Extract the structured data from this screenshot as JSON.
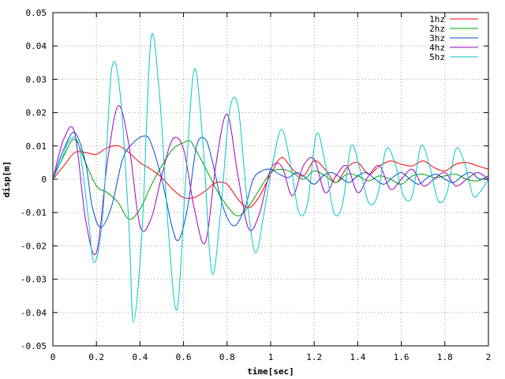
{
  "chart_data": {
    "type": "line",
    "title": "",
    "xlabel": "time[sec]",
    "ylabel": "disp[m]",
    "xlim": [
      0,
      2
    ],
    "ylim": [
      -0.05,
      0.05
    ],
    "xticks": [
      0,
      0.2,
      0.4,
      0.6,
      0.8,
      1,
      1.2,
      1.4,
      1.6,
      1.8,
      2
    ],
    "xtick_labels": [
      "0",
      "0.2",
      "0.4",
      "0.6",
      "0.8",
      "1",
      "1.2",
      "1.4",
      "1.6",
      "1.8",
      "2"
    ],
    "yticks": [
      -0.05,
      -0.04,
      -0.03,
      -0.02,
      -0.01,
      0,
      0.01,
      0.02,
      0.03,
      0.04,
      0.05
    ],
    "ytick_labels": [
      "-0.05",
      "-0.04",
      "-0.03",
      "-0.02",
      "-0.01",
      "0",
      "0.01",
      "0.02",
      "0.03",
      "0.04",
      "0.05"
    ],
    "grid": true,
    "legend_position": "top-right",
    "series": [
      {
        "name": "1hz",
        "color": "#ff0000",
        "x": [
          0,
          0.05,
          0.1,
          0.15,
          0.2,
          0.25,
          0.3,
          0.35,
          0.4,
          0.45,
          0.5,
          0.55,
          0.6,
          0.65,
          0.7,
          0.75,
          0.8,
          0.85,
          0.9,
          0.95,
          1.0,
          1.05,
          1.1,
          1.15,
          1.2,
          1.25,
          1.3,
          1.35,
          1.4,
          1.45,
          1.5,
          1.55,
          1.6,
          1.65,
          1.7,
          1.75,
          1.8,
          1.85,
          1.9,
          1.95,
          2.0
        ],
        "y": [
          0,
          0.004,
          0.008,
          0.008,
          0.0075,
          0.0095,
          0.01,
          0.008,
          0.005,
          0.003,
          0.0005,
          -0.003,
          -0.0055,
          -0.0055,
          -0.0035,
          -0.001,
          -0.0015,
          -0.006,
          -0.0085,
          -0.005,
          0.0015,
          0.0065,
          0.003,
          0.001,
          0.0055,
          0.003,
          -0.001,
          0.0035,
          0.005,
          0.0015,
          0.004,
          0.0055,
          0.0045,
          0.004,
          0.0055,
          0.0035,
          0.0025,
          0.0045,
          0.005,
          0.004,
          0.003
        ]
      },
      {
        "name": "2hz",
        "color": "#00a000",
        "x": [
          0,
          0.05,
          0.1,
          0.15,
          0.2,
          0.25,
          0.3,
          0.35,
          0.4,
          0.45,
          0.5,
          0.55,
          0.6,
          0.63,
          0.65,
          0.7,
          0.75,
          0.8,
          0.85,
          0.9,
          0.95,
          1.0,
          1.05,
          1.1,
          1.15,
          1.2,
          1.25,
          1.3,
          1.35,
          1.4,
          1.45,
          1.5,
          1.55,
          1.6,
          1.65,
          1.7,
          1.75,
          1.8,
          1.85,
          1.9,
          1.95,
          2.0
        ],
        "y": [
          0,
          0.007,
          0.012,
          0.005,
          -0.002,
          -0.004,
          -0.007,
          -0.012,
          -0.009,
          -0.002,
          0.004,
          0.009,
          0.011,
          0.0115,
          0.0095,
          0.0035,
          -0.003,
          -0.008,
          -0.011,
          -0.008,
          -0.003,
          0.002,
          0.003,
          0.002,
          0.0,
          0.0025,
          0.001,
          -0.001,
          0.0015,
          0.001,
          -0.0005,
          0.001,
          0.0,
          -0.0015,
          0.001,
          0.0015,
          0.0005,
          0.001,
          0.0015,
          0.0,
          -0.0005,
          0.001
        ]
      },
      {
        "name": "3hz",
        "color": "#0050d0",
        "x": [
          0,
          0.05,
          0.1,
          0.15,
          0.18,
          0.22,
          0.27,
          0.32,
          0.37,
          0.42,
          0.45,
          0.5,
          0.55,
          0.58,
          0.62,
          0.66,
          0.7,
          0.73,
          0.78,
          0.83,
          0.88,
          0.92,
          0.96,
          1.0,
          1.04,
          1.08,
          1.12,
          1.16,
          1.2,
          1.24,
          1.28,
          1.32,
          1.36,
          1.4,
          1.44,
          1.48,
          1.52,
          1.56,
          1.6,
          1.64,
          1.68,
          1.72,
          1.76,
          1.8,
          1.84,
          1.88,
          1.92,
          1.96,
          2.0
        ],
        "y": [
          0,
          0.009,
          0.014,
          0.005,
          -0.008,
          -0.0145,
          -0.008,
          0.006,
          0.011,
          0.013,
          0.011,
          0.0,
          -0.015,
          -0.018,
          -0.008,
          0.01,
          0.012,
          0.006,
          -0.008,
          -0.014,
          -0.009,
          0.0,
          0.0025,
          0.003,
          0.0015,
          0.0005,
          0.002,
          0.0005,
          -0.0015,
          0.001,
          0.002,
          0.0005,
          -0.001,
          0.001,
          0.002,
          0.0,
          -0.0015,
          0.0005,
          0.002,
          0.0,
          -0.0015,
          0.0005,
          0.0015,
          0.0,
          -0.001,
          0.001,
          0.002,
          0.0,
          0.001
        ]
      },
      {
        "name": "4hz",
        "color": "#a000c0",
        "x": [
          0,
          0.05,
          0.1,
          0.15,
          0.2,
          0.25,
          0.3,
          0.35,
          0.4,
          0.45,
          0.5,
          0.55,
          0.6,
          0.65,
          0.7,
          0.75,
          0.8,
          0.85,
          0.9,
          0.95,
          1.0,
          1.05,
          1.1,
          1.15,
          1.2,
          1.25,
          1.3,
          1.35,
          1.4,
          1.45,
          1.5,
          1.55,
          1.6,
          1.65,
          1.7,
          1.75,
          1.8,
          1.85,
          1.9,
          1.95,
          2.0
        ],
        "y": [
          0,
          0.012,
          0.014,
          -0.012,
          -0.022,
          0.005,
          0.022,
          0.01,
          -0.014,
          -0.012,
          0.001,
          0.012,
          0.009,
          -0.009,
          -0.019,
          0.005,
          0.0195,
          0.001,
          -0.015,
          -0.01,
          0.003,
          0.004,
          -0.005,
          0.004,
          0.006,
          -0.004,
          0.001,
          0.004,
          -0.004,
          0.001,
          0.004,
          -0.003,
          0.0,
          0.003,
          -0.002,
          0.0,
          0.002,
          -0.002,
          0.0,
          0.002,
          0.0
        ]
      },
      {
        "name": "5hz",
        "color": "#00c8c8",
        "x": [
          0,
          0.04,
          0.08,
          0.12,
          0.16,
          0.19,
          0.23,
          0.27,
          0.31,
          0.35,
          0.37,
          0.41,
          0.45,
          0.49,
          0.53,
          0.57,
          0.61,
          0.65,
          0.69,
          0.73,
          0.77,
          0.81,
          0.85,
          0.89,
          0.93,
          0.97,
          1.01,
          1.05,
          1.09,
          1.13,
          1.17,
          1.21,
          1.25,
          1.29,
          1.33,
          1.37,
          1.41,
          1.45,
          1.49,
          1.53,
          1.57,
          1.61,
          1.65,
          1.69,
          1.73,
          1.77,
          1.81,
          1.85,
          1.89,
          1.93,
          1.97,
          2.0
        ],
        "y": [
          0,
          0.006,
          0.012,
          0.01,
          -0.01,
          -0.025,
          -0.01,
          0.033,
          0.025,
          -0.015,
          -0.043,
          -0.015,
          0.042,
          0.025,
          -0.015,
          -0.039,
          0.0,
          0.033,
          0.01,
          -0.028,
          -0.01,
          0.02,
          0.022,
          -0.005,
          -0.022,
          -0.01,
          0.005,
          0.015,
          0.005,
          -0.01,
          -0.007,
          0.0135,
          0.005,
          -0.01,
          -0.0075,
          0.01,
          0.003,
          -0.007,
          -0.005,
          0.009,
          0.005,
          -0.005,
          -0.005,
          0.01,
          0.004,
          -0.0065,
          -0.004,
          0.009,
          0.005,
          -0.005,
          -0.003,
          0.0
        ]
      }
    ]
  }
}
